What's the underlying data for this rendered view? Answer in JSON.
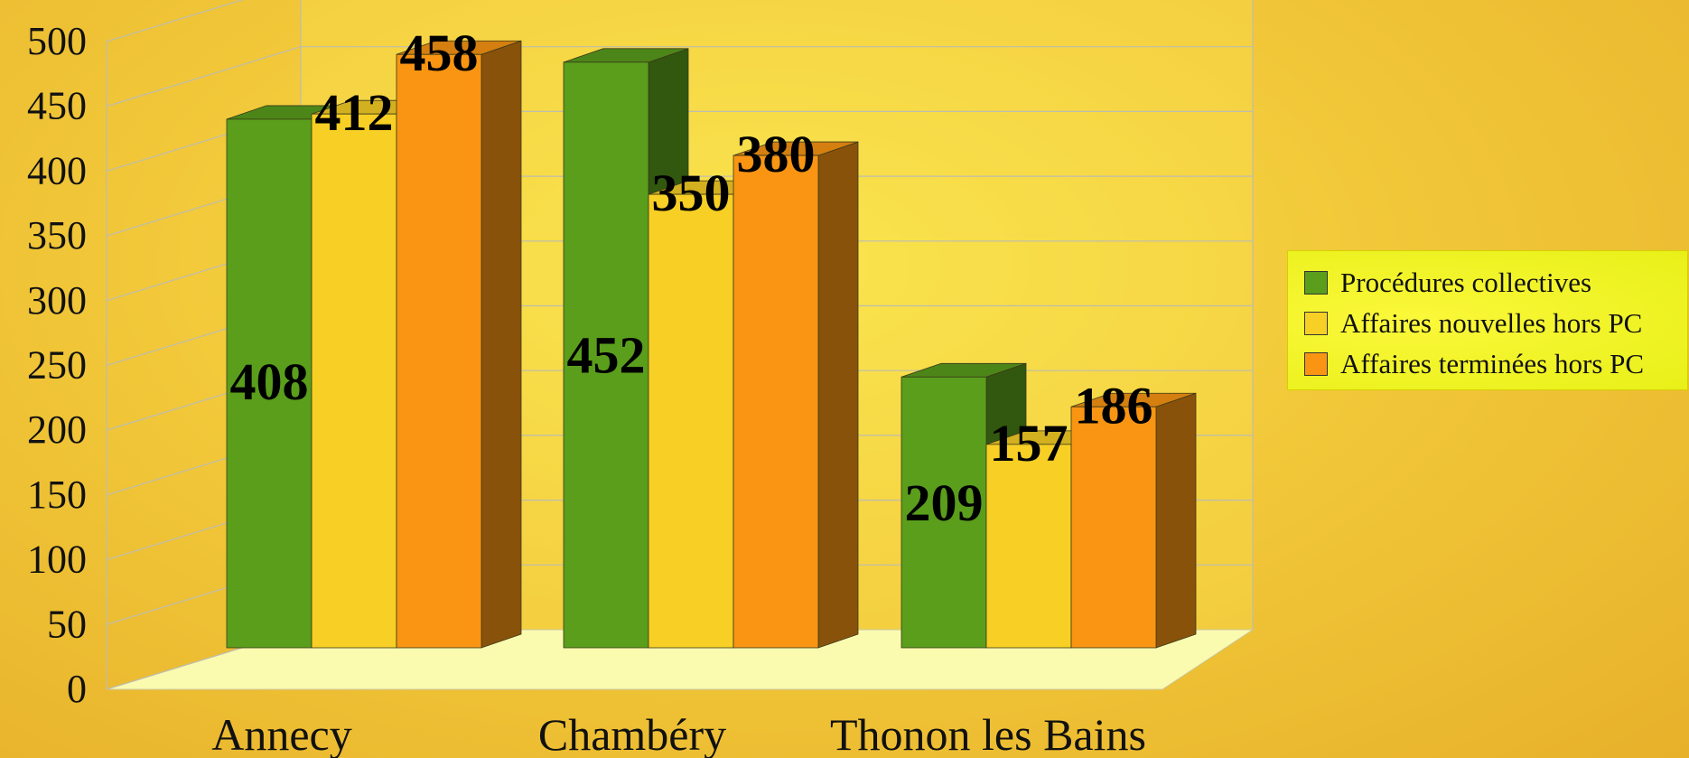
{
  "chart_data": {
    "type": "bar",
    "categories": [
      "Annecy",
      "Chambéry",
      "Thonon les Bains"
    ],
    "series": [
      {
        "name": "Procédures collectives",
        "values": [
          408,
          452,
          209
        ],
        "color": "#5a9e1c"
      },
      {
        "name": "Affaires nouvelles hors PC",
        "values": [
          412,
          350,
          157
        ],
        "color": "#f8cf24"
      },
      {
        "name": "Affaires terminées hors PC",
        "values": [
          458,
          380,
          186
        ],
        "color": "#f99512"
      }
    ],
    "ylim": [
      0,
      500
    ],
    "yticks": [
      0,
      50,
      100,
      150,
      200,
      250,
      300,
      350,
      400,
      450,
      500
    ],
    "grid": true,
    "legend_position": "right",
    "style": "3d-bar"
  }
}
